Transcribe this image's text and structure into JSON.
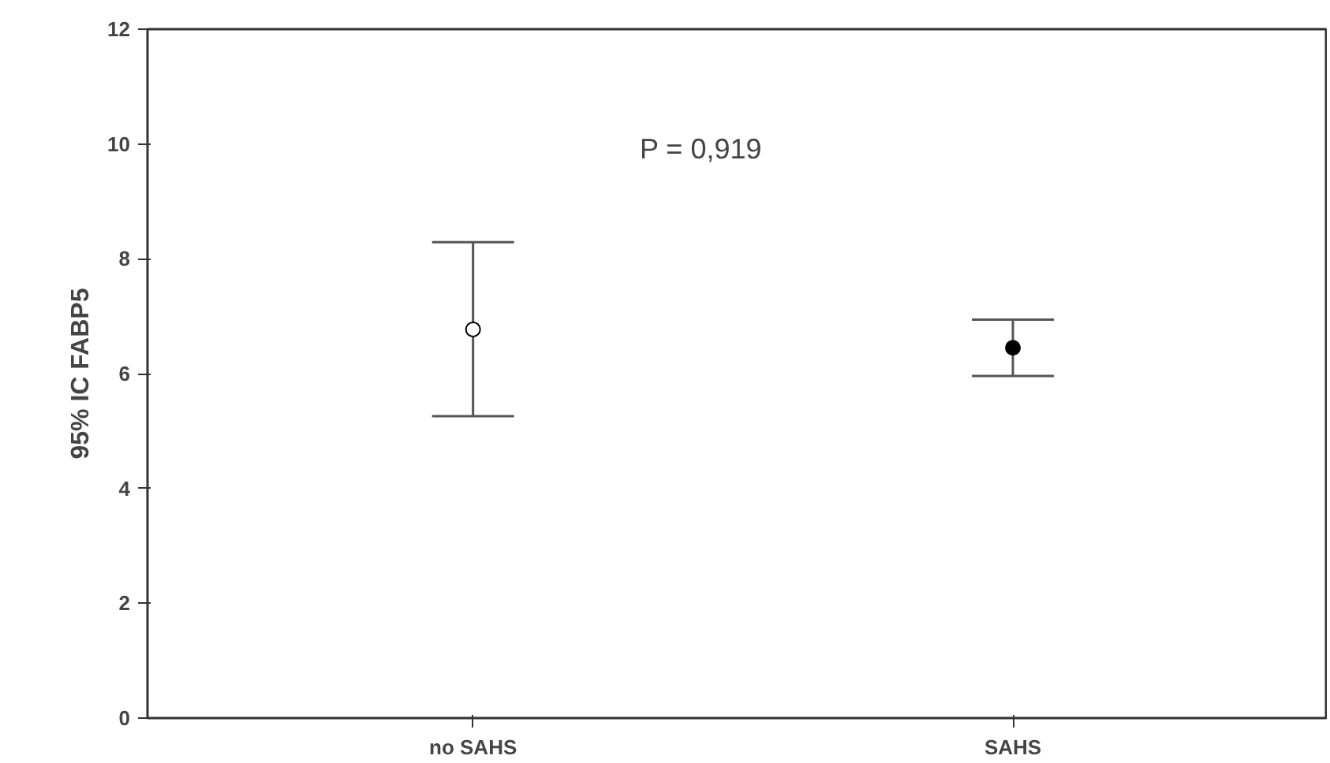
{
  "chart_data": {
    "type": "scatter",
    "ylabel": "95% IC FABP5",
    "categories": [
      "no SAHS",
      "SAHS"
    ],
    "values": [
      6.77,
      6.45
    ],
    "colors": [
      "#ffffff",
      "#000000"
    ],
    "errors": [
      [
        5.26,
        8.29
      ],
      [
        5.96,
        6.94
      ]
    ],
    "ylim": [
      0,
      12
    ],
    "yticks": [
      0,
      2,
      4,
      6,
      8,
      10,
      12
    ],
    "marker": "circle",
    "grid": false,
    "annotations": [
      "P = 0,919"
    ]
  }
}
